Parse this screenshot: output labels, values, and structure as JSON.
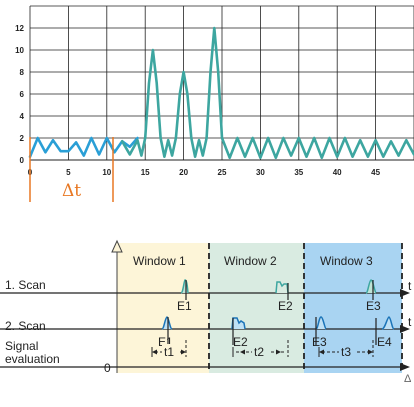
{
  "chart_data": {
    "type": "line",
    "x_ticks": [
      "0",
      "5",
      "10",
      "15",
      "20",
      "25",
      "30",
      "35",
      "40",
      "45"
    ],
    "y_ticks": [
      "0",
      "2",
      "4",
      "6",
      "8",
      "10",
      "12"
    ],
    "xlim": [
      0,
      50
    ],
    "ylim": [
      0,
      14
    ],
    "grid": true,
    "series": [
      {
        "color": "#2a9fd6",
        "x": [
          0,
          1,
          2,
          3,
          4,
          5,
          6,
          7,
          8,
          9,
          10,
          11,
          12,
          13,
          14
        ],
        "y": [
          0.3,
          2,
          0.7,
          1.8,
          0.8,
          0.8,
          1.6,
          0.4,
          2,
          0.5,
          2,
          0.7,
          1.7,
          1.2,
          2
        ]
      },
      {
        "color": "#3da6a0",
        "x": [
          12,
          13,
          14,
          14.5,
          15,
          15.5,
          16,
          16.5,
          17,
          17.5,
          18,
          18.5,
          19,
          19.5,
          20,
          20.5,
          21,
          21.5,
          22,
          22.5,
          23,
          23.5,
          24,
          24.5,
          25,
          26,
          27,
          28,
          29,
          30,
          31,
          32,
          33,
          34,
          35,
          36,
          37,
          38,
          39,
          40,
          41,
          42,
          43,
          44,
          45,
          46,
          47,
          48,
          49,
          50
        ],
        "y": [
          1.7,
          0.5,
          1.8,
          0.4,
          2,
          7,
          10,
          7,
          2,
          0.3,
          1.8,
          0.4,
          2,
          6,
          8,
          6,
          2,
          0.3,
          1.8,
          0.4,
          2,
          8,
          12,
          8,
          2,
          0.2,
          2,
          0.3,
          2,
          0.2,
          2,
          0.2,
          2,
          0.4,
          2,
          0.3,
          2,
          0.2,
          2,
          0.3,
          2,
          0.3,
          1.8,
          0.3,
          1.8,
          0.3,
          1.7,
          0.4,
          1.8,
          0.5
        ]
      }
    ],
    "annotation": "Δt",
    "annotation_range": [
      0,
      10.5
    ]
  },
  "timing": {
    "windows": [
      "Window 1",
      "Window 2",
      "Window 3"
    ],
    "rows": [
      "1. Scan",
      "2. Scan",
      "Signal\nevaluation"
    ],
    "events_scan1": [
      "E1",
      "E2",
      "E3"
    ],
    "events_scan2": [
      "E1",
      "E2",
      "E3",
      "E4"
    ],
    "intervals": [
      "t1",
      "t2",
      "t3"
    ],
    "axis_labels": [
      "t",
      "t",
      "Δ"
    ],
    "origin": "0",
    "colors": {
      "window1": "#fdf5d8",
      "window2": "#d9ebe1",
      "window3": "#a9d4f2",
      "accent": "#e87722"
    }
  }
}
